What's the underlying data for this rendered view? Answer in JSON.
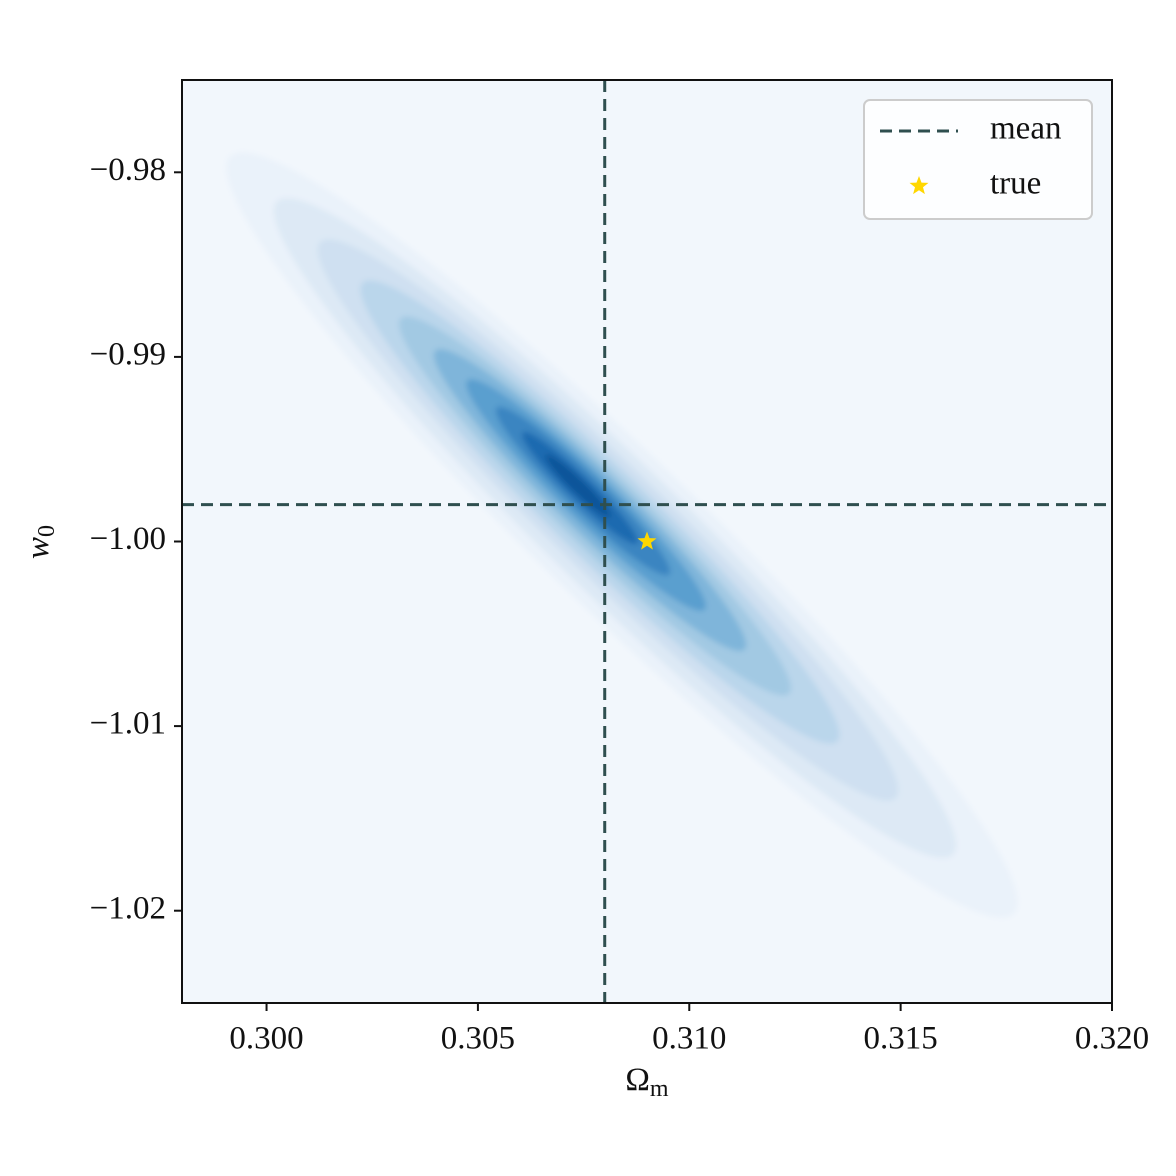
{
  "chart_data": {
    "type": "contour",
    "xlabel": {
      "text": "Ω",
      "sub": "m"
    },
    "ylabel": {
      "text": "w",
      "sub": "0"
    },
    "xlim": [
      0.298,
      0.32
    ],
    "ylim": [
      -1.025,
      -0.975
    ],
    "xticks": [
      {
        "value": 0.3,
        "label": "0.300"
      },
      {
        "value": 0.305,
        "label": "0.305"
      },
      {
        "value": 0.31,
        "label": "0.310"
      },
      {
        "value": 0.315,
        "label": "0.315"
      },
      {
        "value": 0.32,
        "label": "0.320"
      }
    ],
    "yticks": [
      {
        "value": -0.98,
        "label": "−0.98"
      },
      {
        "value": -0.99,
        "label": "−0.99"
      },
      {
        "value": -1.0,
        "label": "−1.00"
      },
      {
        "value": -1.01,
        "label": "−1.01"
      },
      {
        "value": -1.02,
        "label": "−1.02"
      }
    ],
    "series": [
      {
        "name": "mean",
        "color": "#2f4f4f",
        "x": 0.308,
        "y": -0.998
      },
      {
        "name": "true",
        "color": "#ffd700",
        "x": 0.309,
        "y": -1.0
      }
    ],
    "legend": "upper right"
  }
}
